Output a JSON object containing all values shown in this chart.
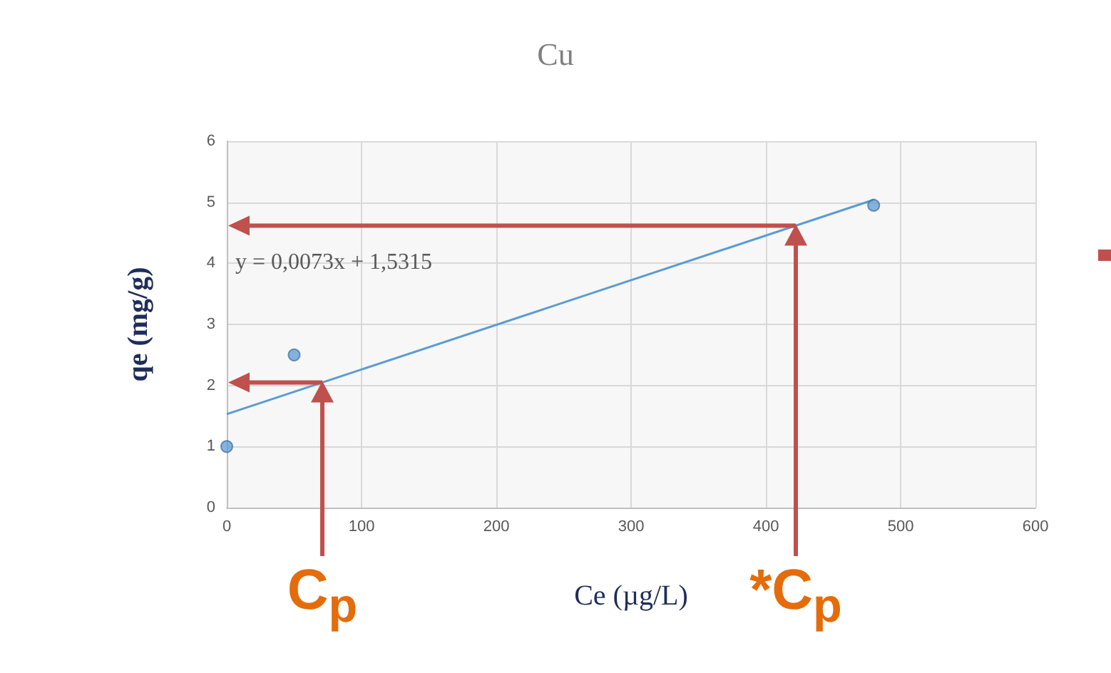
{
  "chart_data": {
    "type": "scatter",
    "title": "Cu",
    "xlabel": "Ce (µg/L)",
    "ylabel": "qe (mg/g)",
    "series": [
      {
        "x": [
          0,
          50,
          480
        ],
        "values": [
          1,
          2.5,
          4.95
        ],
        "color": "#5b9bd5"
      },
      {
        "type": "line",
        "x": [
          0,
          480
        ],
        "values": [
          1.53,
          5.04
        ],
        "color": "#5b9bd5",
        "marker": "none"
      }
    ],
    "xlim": [
      0,
      600
    ],
    "xticks": [
      0,
      100,
      200,
      300,
      400,
      500,
      600
    ],
    "ylim": [
      0,
      6
    ],
    "yticks": [
      0,
      1,
      2,
      3,
      4,
      5,
      6
    ],
    "grid": true,
    "marker": "circle",
    "annotations": [
      "y = 0,0073x + 1,5315",
      "C$_{p}$",
      "*C$_{p}$"
    ]
  }
}
